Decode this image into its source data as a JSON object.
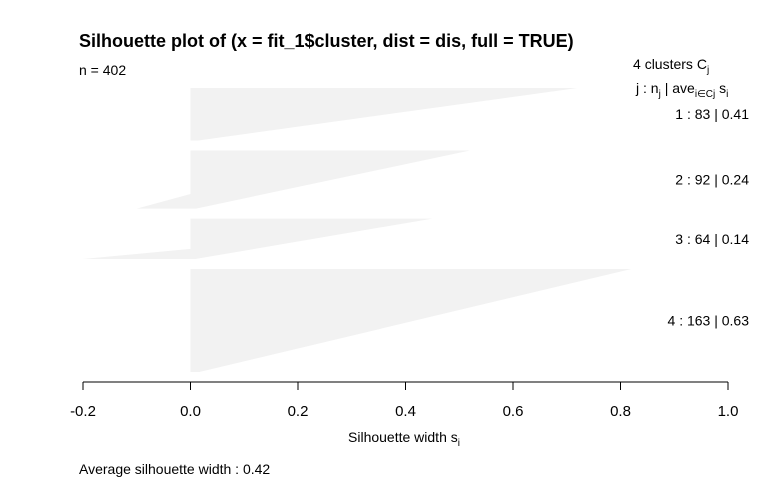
{
  "chart_data": {
    "type": "bar",
    "orientation": "horizontal",
    "title": "Silhouette plot of (x = fit_1$cluster, dist = dis, full = TRUE)",
    "n_label": "n = 402",
    "n": 402,
    "xlabel_main": "Silhouette width s",
    "xlabel_sub": "i",
    "xlim": [
      -0.2,
      1.0
    ],
    "x_ticks": [
      -0.2,
      0.0,
      0.2,
      0.4,
      0.6,
      0.8,
      1.0
    ],
    "x_tick_labels": [
      "-0.2",
      "0.0",
      "0.2",
      "0.4",
      "0.6",
      "0.8",
      "1.0"
    ],
    "legend": {
      "header_count": "4",
      "header_text": "clusters",
      "header_C": "C",
      "header_C_sub": "j",
      "col_j": "j :",
      "col_n": "n",
      "col_n_sub": "j",
      "col_sep": "|",
      "col_ave": "ave",
      "col_ave_sub": "i∈Cj",
      "col_s": "s",
      "col_s_sub": "i"
    },
    "clusters": [
      {
        "id": 1,
        "n": 83,
        "avg": 0.41,
        "max": 0.72,
        "min": 0.0,
        "label": "1 :   83  |  0.41"
      },
      {
        "id": 2,
        "n": 92,
        "avg": 0.24,
        "max": 0.52,
        "min": -0.1,
        "label": "2 :   92  |  0.24"
      },
      {
        "id": 3,
        "n": 64,
        "avg": 0.14,
        "max": 0.45,
        "min": -0.2,
        "label": "3 :   64  |  0.14"
      },
      {
        "id": 4,
        "n": 163,
        "avg": 0.63,
        "max": 0.82,
        "min": 0.0,
        "label": "4 :   163  |  0.63"
      }
    ],
    "bar_color": "#f2f2f2",
    "footer": "Average silhouette width :  0.42",
    "average_silhouette_width": 0.42
  }
}
